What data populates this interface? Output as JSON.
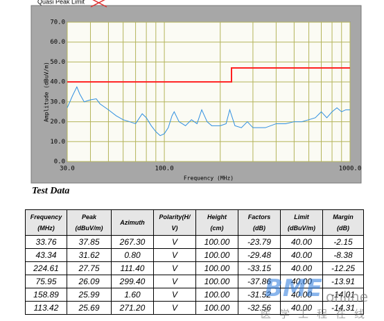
{
  "chart_data": {
    "type": "line",
    "xlabel": "Frequency (MHz)",
    "ylabel": "Amplitude (dBuV/m)",
    "xlog": true,
    "grid": true,
    "xlim": [
      30,
      1000
    ],
    "ylim": [
      0,
      70
    ],
    "xticks": [
      {
        "value": 30,
        "label": "30.0"
      },
      {
        "value": 100,
        "label": "100.0"
      },
      {
        "value": 1000,
        "label": "1000.0"
      }
    ],
    "xgrid": [
      40,
      50,
      60,
      70,
      80,
      90,
      200,
      300,
      400,
      500,
      600,
      700,
      800,
      900
    ],
    "yticks": [
      {
        "value": 0,
        "label": "0.0"
      },
      {
        "value": 10,
        "label": "10.0"
      },
      {
        "value": 20,
        "label": "20.0"
      },
      {
        "value": 30,
        "label": "30.0"
      },
      {
        "value": 40,
        "label": "40.0"
      },
      {
        "value": 50,
        "label": "50.0"
      },
      {
        "value": 60,
        "label": "60.0"
      },
      {
        "value": 70,
        "label": "70.0"
      }
    ],
    "series": [
      {
        "name": "Quasi Peak Limit",
        "color": "#ff2020",
        "x": [
          30,
          230,
          230,
          1000
        ],
        "values": [
          40,
          40,
          47,
          47
        ]
      },
      {
        "color": "#2f8fe0",
        "x": [
          30,
          31,
          32,
          33.8,
          35,
          37,
          40,
          43,
          45,
          50,
          55,
          60,
          65,
          70,
          76,
          80,
          85,
          90,
          95,
          100,
          105,
          110,
          113,
          120,
          130,
          140,
          150,
          159,
          170,
          180,
          200,
          215,
          225,
          240,
          260,
          280,
          300,
          350,
          400,
          450,
          500,
          550,
          600,
          650,
          700,
          750,
          800,
          850,
          900,
          950,
          1000
        ],
        "values": [
          27,
          30,
          33,
          37.5,
          34,
          30,
          31,
          31.5,
          29,
          26,
          23,
          21,
          20,
          19,
          24,
          22,
          18,
          15,
          13,
          14,
          17,
          23,
          25,
          20,
          18,
          21,
          19,
          26,
          20,
          18,
          18,
          19,
          26,
          18,
          17,
          20,
          17,
          17,
          19,
          19,
          20,
          20,
          21,
          22,
          25,
          22,
          25,
          27,
          25,
          26,
          26
        ]
      }
    ]
  },
  "section_title": "Test Data",
  "table": {
    "header": [
      [
        "Frequency",
        "(MHz)"
      ],
      [
        "Peak",
        "(dBuV/m)"
      ],
      [
        "Azimuth"
      ],
      [
        "Polarity(H/",
        "V)"
      ],
      [
        "Height",
        "(cm)"
      ],
      [
        "Factors",
        "(dB)"
      ],
      [
        "Limit",
        "(dBuV/m)"
      ],
      [
        "Margin",
        "(dB)"
      ]
    ],
    "rows": [
      [
        "33.76",
        "37.85",
        "267.30",
        "V",
        "100.00",
        "-23.79",
        "40.00",
        "-2.15"
      ],
      [
        "43.34",
        "31.62",
        "0.80",
        "V",
        "100.00",
        "-29.48",
        "40.00",
        "-8.38"
      ],
      [
        "224.61",
        "27.75",
        "111.40",
        "V",
        "100.00",
        "-33.15",
        "40.00",
        "-12.25"
      ],
      [
        "75.95",
        "26.09",
        "299.40",
        "V",
        "100.00",
        "-37.86",
        "40.00",
        "-13.91"
      ],
      [
        "158.89",
        "25.99",
        "1.60",
        "V",
        "100.00",
        "-31.52",
        "40.00",
        "-14.01"
      ],
      [
        "113.42",
        "25.69",
        "271.20",
        "V",
        "100.00",
        "-32.56",
        "40.00",
        "-14.31"
      ]
    ]
  },
  "watermark": {
    "brand": "BME",
    "suffix": "online",
    "chinese": "医学工程在线"
  }
}
